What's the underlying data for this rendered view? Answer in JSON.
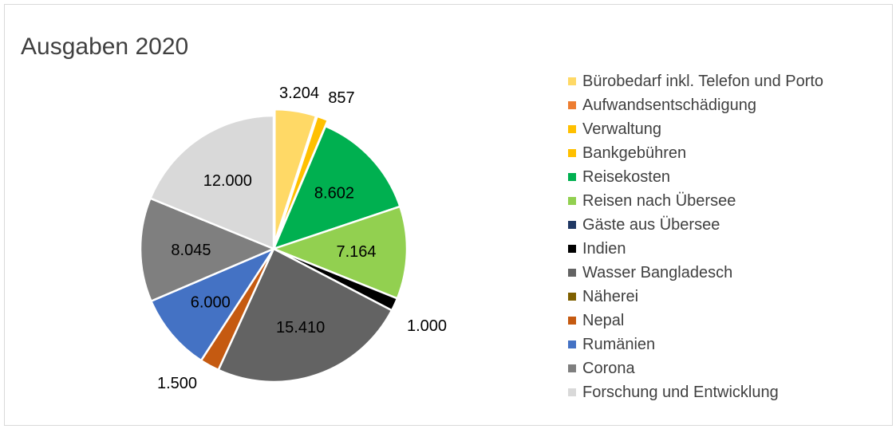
{
  "chart_data": {
    "type": "pie",
    "title": "Ausgaben 2020",
    "legend_position": "right",
    "slices": [
      {
        "label": "Bürobedarf inkl. Telefon und Porto",
        "value": 3204,
        "value_label": "3.204",
        "color": "#FFD966"
      },
      {
        "label": "Aufwandsentschädigung",
        "value": 0,
        "value_label": "",
        "color": "#ED7D31"
      },
      {
        "label": "Verwaltung",
        "value": 0,
        "value_label": "",
        "color": "#FFC000"
      },
      {
        "label": "Bankgebühren",
        "value": 857,
        "value_label": "857",
        "color": "#FFC000"
      },
      {
        "label": "Reisekosten",
        "value": 8602,
        "value_label": "8.602",
        "color": "#00B050"
      },
      {
        "label": "Reisen nach Übersee",
        "value": 7164,
        "value_label": "7.164",
        "color": "#92D050"
      },
      {
        "label": "Gäste aus Übersee",
        "value": 0,
        "value_label": "",
        "color": "#203864"
      },
      {
        "label": "Indien",
        "value": 1000,
        "value_label": "1.000",
        "color": "#000000"
      },
      {
        "label": "Wasser Bangladesch",
        "value": 15410,
        "value_label": "15.410",
        "color": "#636363"
      },
      {
        "label": "Näherei",
        "value": 0,
        "value_label": "",
        "color": "#7F6000"
      },
      {
        "label": "Nepal",
        "value": 1500,
        "value_label": "1.500",
        "color": "#C55A11"
      },
      {
        "label": "Rumänien",
        "value": 6000,
        "value_label": "6.000",
        "color": "#4472C4"
      },
      {
        "label": "Corona",
        "value": 8045,
        "value_label": "8.045",
        "color": "#7F7F7F"
      },
      {
        "label": "Forschung und Entwicklung",
        "value": 12000,
        "value_label": "12.000",
        "color": "#D9D9D9"
      }
    ]
  }
}
